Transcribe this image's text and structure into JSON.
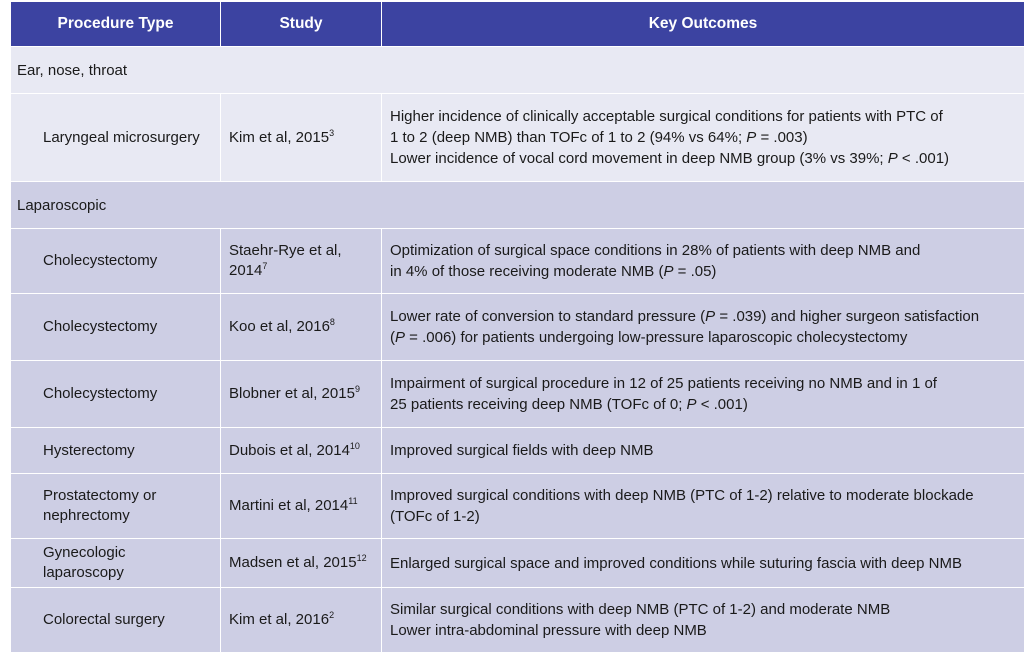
{
  "headers": {
    "procedure": "Procedure Type",
    "study": "Study",
    "outcomes": "Key Outcomes"
  },
  "sections": {
    "ent": "Ear, nose, throat",
    "laparoscopic": "Laparoscopic"
  },
  "rows": [
    {
      "procedure": "Laryngeal microsurgery",
      "study": "Kim et al, 2015",
      "ref": "3",
      "outcome_lines": [
        "Higher incidence of clinically acceptable surgical conditions for patients with PTC of",
        "1 to 2 (deep NMB) than TOFc of 1 to 2 (94% vs 64%; P = .003)",
        "Lower incidence of vocal cord movement in deep NMB group (3% vs 39%; P < .001)"
      ]
    },
    {
      "procedure": "Cholecystectomy",
      "study_line1": "Staehr-Rye et al,",
      "study_line2": "2014",
      "ref": "7",
      "outcome_lines": [
        "Optimization of surgical space conditions in 28% of patients with deep NMB and",
        "in 4% of those receiving moderate NMB (P = .05)"
      ]
    },
    {
      "procedure": "Cholecystectomy",
      "study": "Koo et al, 2016",
      "ref": "8",
      "outcome_lines": [
        "Lower rate of conversion to standard pressure (P = .039) and higher surgeon satisfaction",
        "(P = .006) for patients undergoing low-pressure laparoscopic cholecystectomy"
      ]
    },
    {
      "procedure": "Cholecystectomy",
      "study": "Blobner et al, 2015",
      "ref": "9",
      "outcome_lines": [
        "Impairment of surgical procedure in 12 of 25 patients receiving no NMB and in 1 of",
        "25 patients receiving deep NMB (TOFc of 0; P < .001)"
      ]
    },
    {
      "procedure": "Hysterectomy",
      "study": "Dubois et al, 2014",
      "ref": "10",
      "outcome_lines": [
        "Improved surgical fields with deep NMB"
      ]
    },
    {
      "procedure_line1": "Prostatectomy or",
      "procedure_line2": "nephrectomy",
      "study": "Martini et al, 2014",
      "ref": "11",
      "outcome_lines": [
        "Improved surgical conditions with deep NMB (PTC of 1-2) relative to moderate blockade",
        "(TOFc of 1-2)"
      ]
    },
    {
      "procedure_line1": "Gynecologic",
      "procedure_line2": "laparoscopy",
      "study": "Madsen et al, 2015",
      "ref": "12",
      "outcome_lines": [
        "Enlarged surgical space and improved conditions while suturing fascia with deep NMB"
      ]
    },
    {
      "procedure": "Colorectal surgery",
      "study": "Kim et al, 2016",
      "ref": "2",
      "outcome_lines": [
        "Similar surgical conditions with deep NMB (PTC of 1-2) and moderate NMB",
        "Lower intra-abdominal pressure with deep NMB"
      ]
    }
  ],
  "colors": {
    "header": "#3c43a1",
    "band_light": "#e8e9f3",
    "band_dark": "#cdcee4"
  }
}
